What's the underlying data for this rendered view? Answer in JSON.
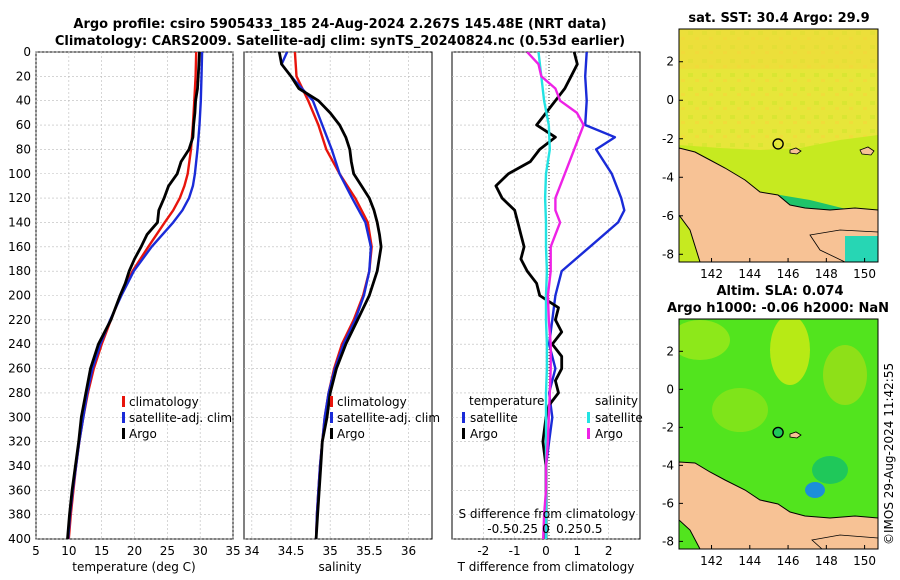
{
  "title": {
    "line1": "Argo profile: csiro 5905433_185 24-Aug-2024 2.267S 145.48E (NRT data)",
    "line2": "Climatology: CARS2009. Satellite-adj clim: synTS_20240824.nc (0.53d earlier)"
  },
  "credit": "©IMOS 29-Aug-2024 11:42:55",
  "colors": {
    "clim": "#e8140c",
    "sat": "#1a2bd8",
    "argo": "#000000",
    "sat_s": "#22e3e3",
    "argo_s": "#ee22e6"
  },
  "chart_data": [
    {
      "type": "line",
      "name": "temperature",
      "xlabel": "temperature (deg C)",
      "ylabel": "",
      "xlim": [
        5,
        35
      ],
      "ylim": [
        400,
        0
      ],
      "xticks": [
        "5",
        "10",
        "15",
        "20",
        "25",
        "30",
        "35"
      ],
      "yticks": [
        "0",
        "20",
        "40",
        "60",
        "80",
        "100",
        "120",
        "140",
        "160",
        "180",
        "200",
        "220",
        "240",
        "260",
        "280",
        "300",
        "320",
        "340",
        "360",
        "380",
        "400"
      ],
      "legend": [
        "climatology",
        "satellite-adj. clim",
        "Argo"
      ],
      "series": [
        {
          "name": "climatology",
          "color": "clim",
          "depth": [
            0,
            20,
            40,
            60,
            80,
            100,
            110,
            120,
            130,
            140,
            160,
            180,
            200,
            220,
            240,
            260,
            280,
            300,
            320,
            340,
            360,
            380,
            400
          ],
          "values": [
            29.4,
            29.3,
            29.1,
            28.9,
            28.6,
            28.1,
            27.6,
            26.9,
            25.9,
            24.6,
            22.1,
            19.7,
            17.9,
            16.4,
            15.0,
            13.8,
            12.9,
            12.2,
            11.6,
            11.1,
            10.7,
            10.3,
            10.0
          ]
        },
        {
          "name": "satellite-adj. clim",
          "color": "sat",
          "depth": [
            0,
            20,
            40,
            60,
            80,
            100,
            110,
            120,
            130,
            140,
            160,
            180,
            200,
            220,
            240,
            260,
            280,
            300,
            320,
            340,
            360,
            380,
            400
          ],
          "values": [
            30.3,
            30.2,
            30.1,
            29.9,
            29.6,
            29.2,
            28.9,
            28.3,
            27.3,
            25.9,
            22.6,
            19.9,
            18.0,
            16.3,
            14.8,
            13.6,
            12.8,
            12.2,
            11.6,
            11.1,
            10.6,
            10.2,
            9.9
          ]
        },
        {
          "name": "Argo",
          "color": "argo",
          "depth": [
            0,
            10,
            20,
            30,
            40,
            50,
            60,
            70,
            80,
            90,
            100,
            110,
            120,
            130,
            140,
            150,
            160,
            170,
            180,
            190,
            200,
            220,
            240,
            260,
            280,
            300,
            320,
            340,
            360,
            380,
            400
          ],
          "values": [
            29.9,
            29.8,
            29.7,
            29.6,
            29.3,
            29.2,
            29.0,
            28.9,
            28.3,
            27.1,
            26.5,
            25.2,
            24.5,
            23.7,
            23.5,
            21.9,
            21.0,
            20.0,
            19.2,
            18.6,
            17.8,
            16.4,
            14.5,
            13.3,
            12.6,
            11.9,
            11.5,
            11.0,
            10.5,
            10.1,
            9.8
          ]
        }
      ]
    },
    {
      "type": "line",
      "name": "salinity",
      "xlabel": "salinity",
      "xlim": [
        33.9,
        36.3
      ],
      "ylim": [
        400,
        0
      ],
      "xticks": [
        "34",
        "34.5",
        "35",
        "35.5",
        "36"
      ],
      "legend": [
        "climatology",
        "satellite-adj. clim",
        "Argo"
      ],
      "series": [
        {
          "name": "climatology",
          "color": "clim",
          "depth": [
            0,
            20,
            40,
            60,
            80,
            100,
            120,
            140,
            160,
            180,
            200,
            220,
            240,
            260,
            280,
            300,
            320,
            340,
            360,
            380,
            400
          ],
          "values": [
            34.55,
            34.57,
            34.72,
            34.85,
            34.95,
            35.12,
            35.32,
            35.48,
            35.53,
            35.5,
            35.42,
            35.3,
            35.15,
            35.05,
            34.98,
            34.93,
            34.9,
            34.87,
            34.85,
            34.83,
            34.82
          ]
        },
        {
          "name": "satellite-adj. clim",
          "color": "sat",
          "depth": [
            0,
            10,
            20,
            40,
            60,
            80,
            100,
            120,
            140,
            160,
            180,
            200,
            220,
            240,
            260,
            280,
            300,
            320,
            340,
            360,
            380,
            400
          ],
          "values": [
            34.45,
            34.38,
            34.5,
            34.78,
            34.9,
            35.02,
            35.12,
            35.28,
            35.45,
            35.52,
            35.5,
            35.43,
            35.32,
            35.17,
            35.06,
            34.98,
            34.93,
            34.9,
            34.87,
            34.85,
            34.83,
            34.82
          ]
        },
        {
          "name": "Argo",
          "color": "argo",
          "depth": [
            0,
            10,
            20,
            30,
            40,
            50,
            60,
            70,
            80,
            90,
            100,
            110,
            120,
            130,
            140,
            150,
            160,
            180,
            200,
            220,
            240,
            260,
            280,
            300,
            320,
            340,
            360,
            380,
            400
          ],
          "values": [
            34.35,
            34.38,
            34.5,
            34.6,
            34.85,
            35.0,
            35.12,
            35.2,
            35.25,
            35.27,
            35.3,
            35.4,
            35.5,
            35.56,
            35.6,
            35.63,
            35.65,
            35.6,
            35.5,
            35.35,
            35.2,
            35.08,
            35.0,
            34.96,
            34.9,
            34.88,
            34.86,
            34.84,
            34.82
          ]
        }
      ]
    },
    {
      "type": "line",
      "name": "differences",
      "xlabel": "T difference from climatology",
      "xlabel2": "S difference from climatology",
      "xlim": [
        -3,
        3
      ],
      "ylim": [
        400,
        0
      ],
      "xticks": [
        "-2",
        "-1",
        "0",
        "1",
        "2"
      ],
      "xticks2": [
        "-0.5",
        "-0.25",
        "0",
        "0.25",
        "0.5"
      ],
      "legend_left": [
        "temperature",
        "satellite",
        "Argo"
      ],
      "legend_right": [
        "salinity",
        "satellite",
        "Argo"
      ],
      "series": [
        {
          "name": "T satellite",
          "color": "sat",
          "depth": [
            0,
            20,
            40,
            60,
            70,
            80,
            100,
            120,
            130,
            140,
            160,
            180,
            200,
            220,
            240,
            260,
            280,
            300,
            320,
            340,
            360,
            380,
            400
          ],
          "values": [
            1.3,
            1.25,
            1.3,
            1.25,
            2.2,
            1.6,
            2.1,
            2.4,
            2.5,
            2.3,
            1.4,
            0.5,
            0.3,
            0.2,
            0.1,
            0.3,
            0.1,
            0.2,
            0.1,
            0.0,
            0.0,
            0.0,
            0.0
          ]
        },
        {
          "name": "T Argo",
          "color": "argo",
          "depth": [
            0,
            10,
            20,
            30,
            40,
            50,
            60,
            70,
            80,
            90,
            100,
            110,
            120,
            130,
            140,
            150,
            160,
            170,
            180,
            190,
            200,
            210,
            220,
            230,
            240,
            250,
            260,
            270,
            280,
            290,
            300,
            320,
            340,
            360,
            380,
            400
          ],
          "values": [
            0.9,
            1.0,
            0.8,
            0.6,
            0.3,
            0.0,
            -0.3,
            0.3,
            -0.2,
            -0.5,
            -1.2,
            -1.6,
            -1.4,
            -1.0,
            -0.9,
            -0.8,
            -0.7,
            -0.8,
            -0.6,
            -0.3,
            -0.2,
            0.4,
            0.3,
            0.5,
            0.2,
            0.5,
            0.5,
            0.3,
            0.4,
            0.1,
            0.0,
            -0.1,
            0.0,
            0.0,
            0.0,
            0.0
          ]
        },
        {
          "name": "S satellite",
          "color": "sat_s",
          "depth": [
            0,
            20,
            40,
            60,
            80,
            100,
            120,
            140,
            160,
            180,
            200,
            220,
            240,
            260,
            280,
            300,
            320,
            340,
            360,
            380,
            400
          ],
          "values": [
            -0.08,
            -0.05,
            -0.02,
            0.03,
            0.04,
            0.0,
            -0.01,
            0.0,
            0.0,
            0.01,
            0.0,
            0.0,
            0.01,
            0.01,
            0.0,
            0.0,
            0.0,
            0.0,
            0.0,
            0.0,
            0.0
          ]
        },
        {
          "name": "S Argo",
          "color": "argo_s",
          "depth": [
            0,
            10,
            20,
            30,
            40,
            50,
            60,
            80,
            100,
            120,
            130,
            140,
            150,
            160,
            180,
            200,
            220,
            240,
            260,
            280,
            300,
            320,
            340,
            360,
            380,
            400
          ],
          "values": [
            -0.2,
            -0.08,
            -0.05,
            0.1,
            0.15,
            0.33,
            0.4,
            0.3,
            0.2,
            0.1,
            0.1,
            0.15,
            0.1,
            0.05,
            0.05,
            0.02,
            0.03,
            0.05,
            0.05,
            0.04,
            0.03,
            0.02,
            0.0,
            0.0,
            -0.02,
            -0.03
          ]
        }
      ]
    },
    {
      "type": "heatmap",
      "name": "sst_map",
      "title": "sat. SST: 30.4 Argo: 29.9",
      "xticks": [
        "142",
        "144",
        "146",
        "148",
        "150"
      ],
      "yticks": [
        "2",
        "0",
        "-2",
        "-4",
        "-6",
        "-8"
      ],
      "xlim": [
        140.3,
        150.7
      ],
      "ylim": [
        -8.4,
        3.7
      ],
      "float_lon": 145.48,
      "float_lat": -2.267
    },
    {
      "type": "heatmap",
      "name": "sla_map",
      "title": "Altim. SLA: 0.074",
      "title2": "Argo h1000: -0.06 h2000: NaN",
      "xticks": [
        "142",
        "144",
        "146",
        "148",
        "150"
      ],
      "yticks": [
        "2",
        "0",
        "-2",
        "-4",
        "-6",
        "-8"
      ],
      "xlim": [
        140.3,
        150.7
      ],
      "ylim": [
        -8.4,
        3.7
      ],
      "float_lon": 145.48,
      "float_lat": -2.267
    }
  ]
}
